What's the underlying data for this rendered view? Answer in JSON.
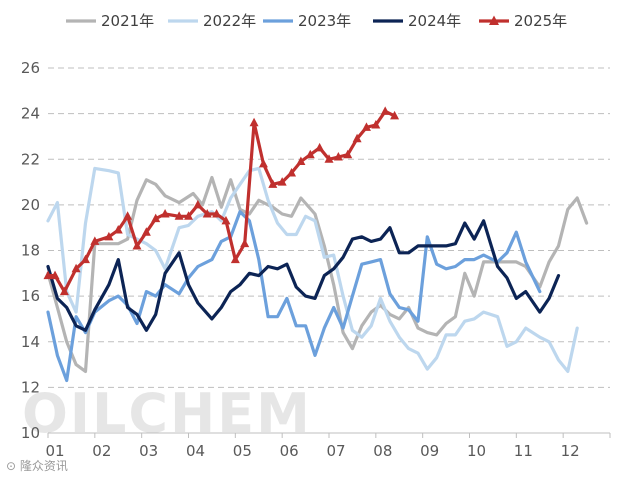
{
  "chart_data": {
    "type": "line",
    "title": "",
    "xlabel": "",
    "ylabel": "",
    "ylim": [
      10,
      26
    ],
    "yticks": [
      10,
      12,
      14,
      16,
      18,
      20,
      22,
      24,
      26
    ],
    "xlim": [
      1,
      13
    ],
    "categories": [
      "01",
      "02",
      "03",
      "04",
      "05",
      "06",
      "07",
      "08",
      "09",
      "10",
      "11",
      "12"
    ],
    "grid": "horizontal dashed",
    "legend_position": "top",
    "series": [
      {
        "name": "2021年",
        "color": "#b4b4b4",
        "marker": "none",
        "points": [
          [
            1.0,
            17.0
          ],
          [
            1.2,
            15.5
          ],
          [
            1.4,
            14.0
          ],
          [
            1.6,
            13.0
          ],
          [
            1.8,
            12.7
          ],
          [
            2.0,
            18.3
          ],
          [
            2.3,
            18.3
          ],
          [
            2.5,
            18.3
          ],
          [
            2.7,
            18.5
          ],
          [
            2.9,
            20.2
          ],
          [
            3.1,
            21.1
          ],
          [
            3.3,
            20.9
          ],
          [
            3.5,
            20.4
          ],
          [
            3.8,
            20.1
          ],
          [
            4.1,
            20.5
          ],
          [
            4.3,
            20.0
          ],
          [
            4.5,
            21.2
          ],
          [
            4.7,
            19.9
          ],
          [
            4.9,
            21.1
          ],
          [
            5.1,
            19.8
          ],
          [
            5.3,
            19.6
          ],
          [
            5.5,
            20.2
          ],
          [
            5.8,
            19.9
          ],
          [
            6.0,
            19.6
          ],
          [
            6.2,
            19.5
          ],
          [
            6.4,
            20.3
          ],
          [
            6.7,
            19.6
          ],
          [
            6.9,
            18.2
          ],
          [
            7.1,
            16.5
          ],
          [
            7.3,
            14.4
          ],
          [
            7.5,
            13.7
          ],
          [
            7.7,
            14.7
          ],
          [
            7.9,
            15.3
          ],
          [
            8.1,
            15.6
          ],
          [
            8.3,
            15.2
          ],
          [
            8.5,
            15.0
          ],
          [
            8.7,
            15.5
          ],
          [
            8.9,
            14.6
          ],
          [
            9.1,
            14.4
          ],
          [
            9.3,
            14.3
          ],
          [
            9.5,
            14.8
          ],
          [
            9.7,
            15.1
          ],
          [
            9.9,
            17.0
          ],
          [
            10.1,
            16.0
          ],
          [
            10.3,
            17.5
          ],
          [
            10.6,
            17.5
          ],
          [
            10.8,
            17.5
          ],
          [
            11.0,
            17.5
          ],
          [
            11.2,
            17.3
          ],
          [
            11.5,
            16.4
          ],
          [
            11.7,
            17.5
          ],
          [
            11.9,
            18.2
          ],
          [
            12.1,
            19.8
          ],
          [
            12.3,
            20.3
          ],
          [
            12.5,
            19.2
          ]
        ]
      },
      {
        "name": "2022年",
        "color": "#bdd7ee",
        "marker": "none",
        "points": [
          [
            1.0,
            19.3
          ],
          [
            1.2,
            20.1
          ],
          [
            1.4,
            16.2
          ],
          [
            1.6,
            15.3
          ],
          [
            1.8,
            19.2
          ],
          [
            2.0,
            21.6
          ],
          [
            2.3,
            21.5
          ],
          [
            2.5,
            21.4
          ],
          [
            2.7,
            18.7
          ],
          [
            2.9,
            18.5
          ],
          [
            3.1,
            18.3
          ],
          [
            3.3,
            18.0
          ],
          [
            3.5,
            17.2
          ],
          [
            3.8,
            19.0
          ],
          [
            4.0,
            19.1
          ],
          [
            4.2,
            19.5
          ],
          [
            4.5,
            19.7
          ],
          [
            4.7,
            19.3
          ],
          [
            4.9,
            20.3
          ],
          [
            5.1,
            20.9
          ],
          [
            5.3,
            21.5
          ],
          [
            5.5,
            21.6
          ],
          [
            5.7,
            20.2
          ],
          [
            5.9,
            19.2
          ],
          [
            6.1,
            18.7
          ],
          [
            6.3,
            18.7
          ],
          [
            6.5,
            19.5
          ],
          [
            6.7,
            19.3
          ],
          [
            6.9,
            17.7
          ],
          [
            7.1,
            17.8
          ],
          [
            7.3,
            16.0
          ],
          [
            7.5,
            14.5
          ],
          [
            7.7,
            14.2
          ],
          [
            7.9,
            14.7
          ],
          [
            8.1,
            15.9
          ],
          [
            8.3,
            14.9
          ],
          [
            8.5,
            14.2
          ],
          [
            8.7,
            13.7
          ],
          [
            8.9,
            13.5
          ],
          [
            9.1,
            12.8
          ],
          [
            9.3,
            13.3
          ],
          [
            9.5,
            14.3
          ],
          [
            9.7,
            14.3
          ],
          [
            9.9,
            14.9
          ],
          [
            10.1,
            15.0
          ],
          [
            10.3,
            15.3
          ],
          [
            10.6,
            15.1
          ],
          [
            10.8,
            13.8
          ],
          [
            11.0,
            14.0
          ],
          [
            11.2,
            14.6
          ],
          [
            11.5,
            14.2
          ],
          [
            11.7,
            14.0
          ],
          [
            11.9,
            13.2
          ],
          [
            12.1,
            12.7
          ],
          [
            12.3,
            14.6
          ]
        ]
      },
      {
        "name": "2023年",
        "color": "#6ca0dc",
        "marker": "none",
        "points": [
          [
            1.0,
            15.3
          ],
          [
            1.2,
            13.4
          ],
          [
            1.4,
            12.3
          ],
          [
            1.6,
            15.1
          ],
          [
            1.8,
            14.4
          ],
          [
            2.0,
            15.3
          ],
          [
            2.3,
            15.8
          ],
          [
            2.5,
            16.0
          ],
          [
            2.7,
            15.6
          ],
          [
            2.9,
            14.8
          ],
          [
            3.1,
            16.2
          ],
          [
            3.3,
            16.0
          ],
          [
            3.5,
            16.5
          ],
          [
            3.8,
            16.1
          ],
          [
            4.0,
            16.8
          ],
          [
            4.2,
            17.3
          ],
          [
            4.5,
            17.6
          ],
          [
            4.7,
            18.4
          ],
          [
            4.9,
            18.6
          ],
          [
            5.1,
            19.7
          ],
          [
            5.3,
            19.3
          ],
          [
            5.5,
            17.6
          ],
          [
            5.7,
            15.1
          ],
          [
            5.9,
            15.1
          ],
          [
            6.1,
            15.9
          ],
          [
            6.3,
            14.7
          ],
          [
            6.5,
            14.7
          ],
          [
            6.7,
            13.4
          ],
          [
            6.9,
            14.6
          ],
          [
            7.1,
            15.5
          ],
          [
            7.3,
            14.6
          ],
          [
            7.5,
            16.0
          ],
          [
            7.7,
            17.4
          ],
          [
            7.9,
            17.5
          ],
          [
            8.1,
            17.6
          ],
          [
            8.3,
            16.1
          ],
          [
            8.5,
            15.5
          ],
          [
            8.7,
            15.4
          ],
          [
            8.9,
            14.9
          ],
          [
            9.1,
            18.6
          ],
          [
            9.3,
            17.4
          ],
          [
            9.5,
            17.2
          ],
          [
            9.7,
            17.3
          ],
          [
            9.9,
            17.6
          ],
          [
            10.1,
            17.6
          ],
          [
            10.3,
            17.8
          ],
          [
            10.6,
            17.5
          ],
          [
            10.8,
            17.9
          ],
          [
            11.0,
            18.8
          ],
          [
            11.2,
            17.5
          ],
          [
            11.5,
            16.2
          ]
        ]
      },
      {
        "name": "2024年",
        "color": "#0c2455",
        "marker": "none",
        "points": [
          [
            1.0,
            17.3
          ],
          [
            1.2,
            15.9
          ],
          [
            1.4,
            15.5
          ],
          [
            1.6,
            14.7
          ],
          [
            1.8,
            14.5
          ],
          [
            2.0,
            15.4
          ],
          [
            2.3,
            16.5
          ],
          [
            2.5,
            17.6
          ],
          [
            2.7,
            15.5
          ],
          [
            2.9,
            15.2
          ],
          [
            3.1,
            14.5
          ],
          [
            3.3,
            15.2
          ],
          [
            3.5,
            17.0
          ],
          [
            3.8,
            17.9
          ],
          [
            4.0,
            16.5
          ],
          [
            4.2,
            15.7
          ],
          [
            4.5,
            15.0
          ],
          [
            4.7,
            15.5
          ],
          [
            4.9,
            16.2
          ],
          [
            5.1,
            16.5
          ],
          [
            5.3,
            17.0
          ],
          [
            5.5,
            16.9
          ],
          [
            5.7,
            17.3
          ],
          [
            5.9,
            17.2
          ],
          [
            6.1,
            17.4
          ],
          [
            6.3,
            16.4
          ],
          [
            6.5,
            16.0
          ],
          [
            6.7,
            15.9
          ],
          [
            6.9,
            16.9
          ],
          [
            7.1,
            17.2
          ],
          [
            7.3,
            17.7
          ],
          [
            7.5,
            18.5
          ],
          [
            7.7,
            18.6
          ],
          [
            7.9,
            18.4
          ],
          [
            8.1,
            18.5
          ],
          [
            8.3,
            19.0
          ],
          [
            8.5,
            17.9
          ],
          [
            8.7,
            17.9
          ],
          [
            8.9,
            18.2
          ],
          [
            9.1,
            18.2
          ],
          [
            9.3,
            18.2
          ],
          [
            9.5,
            18.2
          ],
          [
            9.7,
            18.3
          ],
          [
            9.9,
            19.2
          ],
          [
            10.1,
            18.5
          ],
          [
            10.3,
            19.3
          ],
          [
            10.6,
            17.3
          ],
          [
            10.8,
            16.8
          ],
          [
            11.0,
            15.9
          ],
          [
            11.2,
            16.2
          ],
          [
            11.5,
            15.3
          ],
          [
            11.7,
            15.9
          ],
          [
            11.9,
            16.9
          ]
        ]
      },
      {
        "name": "2025年",
        "color": "#c0302e",
        "marker": "triangle",
        "points": [
          [
            1.0,
            16.9
          ],
          [
            1.15,
            16.9
          ],
          [
            1.35,
            16.2
          ],
          [
            1.6,
            17.2
          ],
          [
            1.8,
            17.6
          ],
          [
            2.0,
            18.4
          ],
          [
            2.3,
            18.6
          ],
          [
            2.5,
            18.9
          ],
          [
            2.7,
            19.5
          ],
          [
            2.9,
            18.2
          ],
          [
            3.1,
            18.8
          ],
          [
            3.3,
            19.4
          ],
          [
            3.5,
            19.6
          ],
          [
            3.8,
            19.5
          ],
          [
            4.0,
            19.5
          ],
          [
            4.2,
            20.0
          ],
          [
            4.4,
            19.6
          ],
          [
            4.6,
            19.6
          ],
          [
            4.8,
            19.3
          ],
          [
            5.0,
            17.6
          ],
          [
            5.2,
            18.3
          ],
          [
            5.4,
            23.6
          ],
          [
            5.6,
            21.8
          ],
          [
            5.8,
            20.9
          ],
          [
            6.0,
            21.0
          ],
          [
            6.2,
            21.4
          ],
          [
            6.4,
            21.9
          ],
          [
            6.6,
            22.2
          ],
          [
            6.8,
            22.5
          ],
          [
            7.0,
            22.0
          ],
          [
            7.2,
            22.1
          ],
          [
            7.4,
            22.2
          ],
          [
            7.6,
            22.9
          ],
          [
            7.8,
            23.4
          ],
          [
            8.0,
            23.5
          ],
          [
            8.2,
            24.1
          ],
          [
            8.4,
            23.9
          ]
        ]
      }
    ]
  },
  "watermark": "OILCHEM",
  "source_text": "⊙ 隆众资讯"
}
